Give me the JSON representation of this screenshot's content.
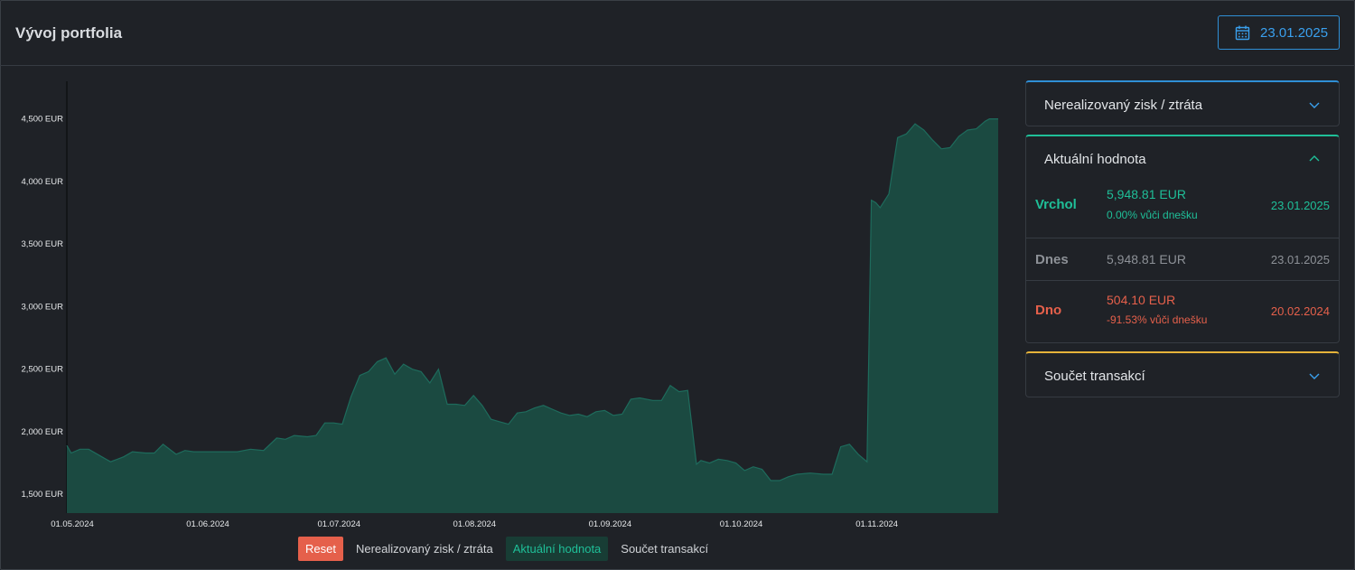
{
  "header": {
    "title": "Vývoj portfolia",
    "date_button": "23.01.2025",
    "calendar_icon": "calendar-icon"
  },
  "cards": {
    "unrealized": {
      "title": "Nerealizovaný zisk / ztráta",
      "accent": "#2f8fd6",
      "expanded": false
    },
    "current": {
      "title": "Aktuální hodnota",
      "accent": "#1fbf98",
      "expanded": true,
      "peak": {
        "label": "Vrchol",
        "value": "5,948.81 EUR",
        "sub": "0.00% vůči dnešku",
        "date": "23.01.2025"
      },
      "today": {
        "label": "Dnes",
        "value": "5,948.81 EUR",
        "date": "23.01.2025"
      },
      "bottom": {
        "label": "Dno",
        "value": "504.10 EUR",
        "sub": "-91.53% vůči dnešku",
        "date": "20.02.2024"
      }
    },
    "transactions": {
      "title": "Součet transakcí",
      "accent": "#e5b33a",
      "expanded": false
    }
  },
  "legend": {
    "reset": "Reset",
    "unrealized": "Nerealizovaný zisk / ztráta",
    "current": "Aktuální hodnota",
    "transactions": "Součet transakcí"
  },
  "colors": {
    "area_fill": "#1b4a41",
    "area_stroke": "#1e6b5c",
    "accent_blue": "#2f8fd6",
    "accent_green": "#1fbf98",
    "accent_red": "#e5604b",
    "accent_yellow": "#e5b33a"
  },
  "chart_data": {
    "type": "area",
    "title": "",
    "xlabel": "",
    "ylabel": "",
    "ylim": [
      1350,
      4800
    ],
    "y_ticks": [
      1500,
      2000,
      2500,
      3000,
      3500,
      4000,
      4500
    ],
    "y_tick_labels": [
      "1,500 EUR",
      "2,000 EUR",
      "2,500 EUR",
      "3,000 EUR",
      "3,500 EUR",
      "4,000 EUR",
      "4,500 EUR"
    ],
    "x_range": [
      "2024-05-01",
      "2024-11-30"
    ],
    "x_ticks": [
      "2024-05-01",
      "2024-06-01",
      "2024-07-01",
      "2024-08-01",
      "2024-09-01",
      "2024-10-01",
      "2024-11-01"
    ],
    "x_tick_labels": [
      "01.05.2024",
      "01.06.2024",
      "01.07.2024",
      "01.08.2024",
      "01.09.2024",
      "01.10.2024",
      "01.11.2024"
    ],
    "series": [
      {
        "name": "Aktuální hodnota",
        "x": [
          "2024-05-01",
          "2024-05-02",
          "2024-05-04",
          "2024-05-06",
          "2024-05-09",
          "2024-05-11",
          "2024-05-14",
          "2024-05-16",
          "2024-05-19",
          "2024-05-21",
          "2024-05-23",
          "2024-05-26",
          "2024-05-28",
          "2024-05-30",
          "2024-06-01",
          "2024-06-04",
          "2024-06-06",
          "2024-06-09",
          "2024-06-12",
          "2024-06-15",
          "2024-06-18",
          "2024-06-20",
          "2024-06-22",
          "2024-06-25",
          "2024-06-27",
          "2024-06-29",
          "2024-07-01",
          "2024-07-03",
          "2024-07-05",
          "2024-07-07",
          "2024-07-09",
          "2024-07-11",
          "2024-07-13",
          "2024-07-15",
          "2024-07-17",
          "2024-07-19",
          "2024-07-21",
          "2024-07-23",
          "2024-07-25",
          "2024-07-27",
          "2024-07-29",
          "2024-07-31",
          "2024-08-02",
          "2024-08-04",
          "2024-08-06",
          "2024-08-08",
          "2024-08-10",
          "2024-08-12",
          "2024-08-14",
          "2024-08-16",
          "2024-08-18",
          "2024-08-20",
          "2024-08-22",
          "2024-08-24",
          "2024-08-26",
          "2024-08-28",
          "2024-08-30",
          "2024-09-01",
          "2024-09-03",
          "2024-09-05",
          "2024-09-07",
          "2024-09-09",
          "2024-09-12",
          "2024-09-14",
          "2024-09-16",
          "2024-09-18",
          "2024-09-20",
          "2024-09-22",
          "2024-09-23",
          "2024-09-25",
          "2024-09-27",
          "2024-09-29",
          "2024-10-01",
          "2024-10-03",
          "2024-10-05",
          "2024-10-07",
          "2024-10-09",
          "2024-10-11",
          "2024-10-13",
          "2024-10-15",
          "2024-10-18",
          "2024-10-21",
          "2024-10-23",
          "2024-10-25",
          "2024-10-27",
          "2024-10-29",
          "2024-10-31",
          "2024-11-01",
          "2024-11-02",
          "2024-11-03",
          "2024-11-05",
          "2024-11-07",
          "2024-11-09",
          "2024-11-11",
          "2024-11-13",
          "2024-11-15",
          "2024-11-17",
          "2024-11-19",
          "2024-11-21",
          "2024-11-23",
          "2024-11-25",
          "2024-11-27",
          "2024-11-28",
          "2024-11-30"
        ],
        "values": [
          1890,
          1830,
          1860,
          1860,
          1800,
          1760,
          1800,
          1840,
          1830,
          1830,
          1900,
          1820,
          1850,
          1840,
          1840,
          1840,
          1840,
          1840,
          1860,
          1850,
          1950,
          1940,
          1970,
          1960,
          1970,
          2070,
          2070,
          2060,
          2280,
          2450,
          2480,
          2560,
          2590,
          2460,
          2540,
          2500,
          2480,
          2390,
          2500,
          2220,
          2220,
          2210,
          2290,
          2210,
          2100,
          2080,
          2060,
          2150,
          2160,
          2190,
          2210,
          2180,
          2150,
          2130,
          2140,
          2120,
          2160,
          2170,
          2130,
          2140,
          2260,
          2270,
          2250,
          2250,
          2370,
          2320,
          2330,
          1740,
          1770,
          1750,
          1780,
          1770,
          1750,
          1690,
          1720,
          1700,
          1610,
          1610,
          1640,
          1660,
          1670,
          1660,
          1660,
          1880,
          1900,
          1820,
          1760,
          3850,
          3830,
          3790,
          3900,
          4350,
          4380,
          4460,
          4410,
          4330,
          4260,
          4270,
          4360,
          4410,
          4420,
          4480,
          4500,
          4500
        ]
      }
    ]
  }
}
